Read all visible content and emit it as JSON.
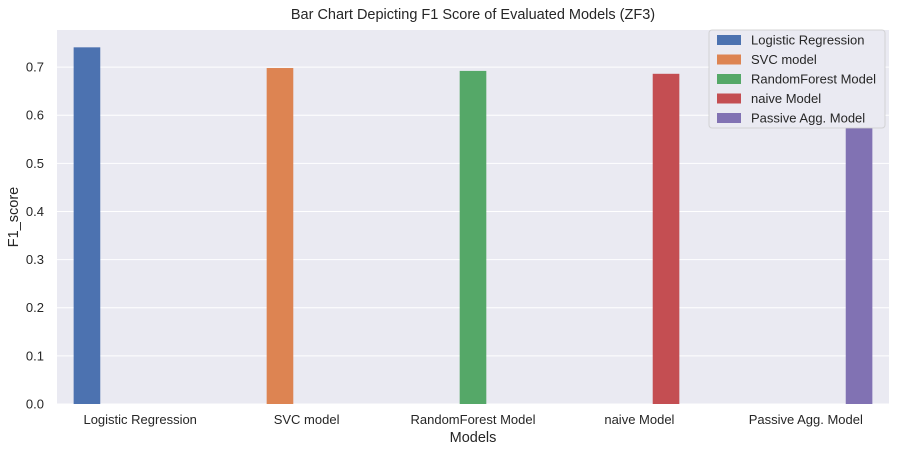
{
  "chart_data": {
    "type": "bar",
    "title": "Bar Chart Depicting F1 Score of Evaluated Models (ZF3)",
    "xlabel": "Models",
    "ylabel": "F1_score",
    "categories": [
      "Logistic Regression",
      "SVC model",
      "RandomForest Model",
      "naive Model",
      "Passive Agg. Model"
    ],
    "series": [
      {
        "name": "Logistic Regression",
        "color": "#4c72b0",
        "values": [
          0.741,
          null,
          null,
          null,
          null
        ]
      },
      {
        "name": "SVC model",
        "color": "#dd8452",
        "values": [
          null,
          0.698,
          null,
          null,
          null
        ]
      },
      {
        "name": "RandomForest Model",
        "color": "#55a868",
        "values": [
          null,
          null,
          0.692,
          null,
          null
        ]
      },
      {
        "name": "naive Model",
        "color": "#c44e52",
        "values": [
          null,
          null,
          null,
          0.686,
          null
        ]
      },
      {
        "name": "Passive Agg. Model",
        "color": "#8172b3",
        "values": [
          null,
          null,
          null,
          null,
          0.712
        ]
      }
    ],
    "ylim": [
      0,
      0.777
    ],
    "yticks": [
      "0.0",
      "0.1",
      "0.2",
      "0.3",
      "0.4",
      "0.5",
      "0.6",
      "0.7"
    ],
    "grid": true,
    "legend_position": "top-right",
    "background_color": "#eaeaf2",
    "grid_color": "#ffffff"
  }
}
